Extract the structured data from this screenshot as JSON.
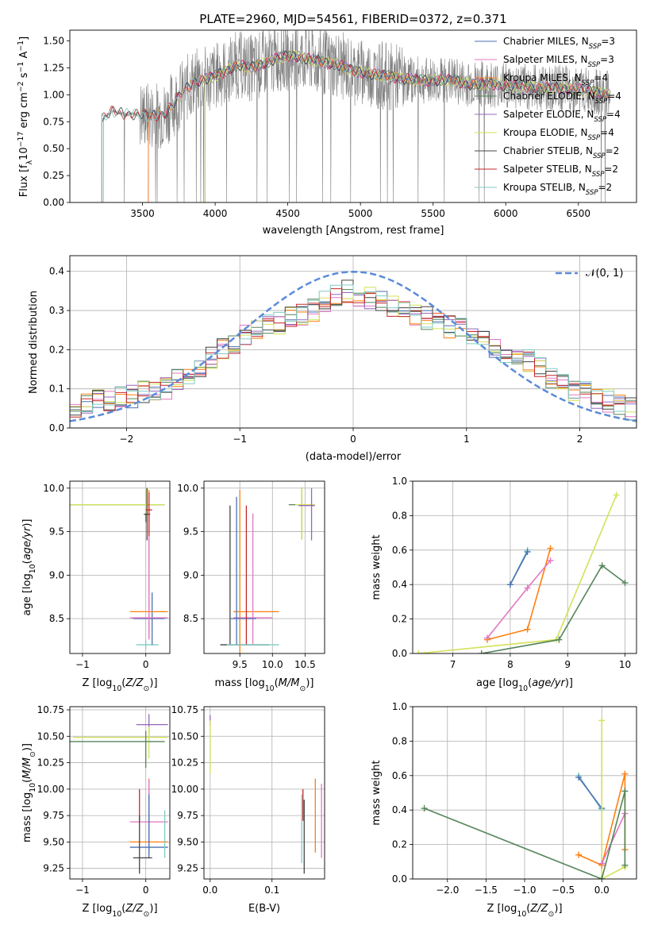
{
  "title": "PLATE=2960, MJD=54561, FIBERID=0372, z=0.371",
  "colors": {
    "chabrier_miles": "#4c72b0",
    "salpeter_miles": "#e377c2",
    "kroupa_miles": "#ff7f0e",
    "chabrier_elodie": "#55855a",
    "salpeter_elodie": "#9467bd",
    "kroupa_elodie": "#d4e157",
    "chabrier_stelib": "#444444",
    "salpeter_stelib": "#c62828",
    "kroupa_stelib": "#80cbc4",
    "data": "#808080",
    "gaussian": "#5b8bd9"
  },
  "chart_data": [
    {
      "id": "spectrum",
      "type": "line",
      "xlabel": "wavelength [Angstrom, rest frame]",
      "ylabel": "Flux [f_λ 10^-17 erg cm^-2 s^-1 A^-1]",
      "xlim": [
        3000,
        6900
      ],
      "ylim": [
        0,
        1.6
      ],
      "xticks": [
        "3500",
        "4000",
        "4500",
        "5000",
        "5500",
        "6000",
        "6500"
      ],
      "yticks": [
        "0.00",
        "0.25",
        "0.50",
        "0.75",
        "1.00",
        "1.25",
        "1.50"
      ],
      "legend": {
        "placement": "right",
        "entries": [
          "Chabrier MILES, N_SSP=3",
          "Salpeter MILES, N_SSP=3",
          "Kroupa MILES, N_SSP=4",
          "Chabrier ELODIE, N_SSP=4",
          "Salpeter ELODIE, N_SSP=4",
          "Kroupa ELODIE, N_SSP=4",
          "Chabrier STELIB, N_SSP=2",
          "Salpeter STELIB, N_SSP=2",
          "Kroupa STELIB, N_SSP=2"
        ]
      },
      "model_x": [
        3230,
        3290,
        3350,
        3420,
        3500,
        3560,
        3650,
        3750,
        3850,
        3950,
        4050,
        4150,
        4250,
        4350,
        4450,
        4550,
        4650,
        4750,
        4850,
        4950,
        5050,
        5150,
        5300,
        5450,
        5600,
        5750,
        5900,
        6050,
        6200,
        6350,
        6500,
        6600,
        6720
      ],
      "model_y": [
        0.78,
        0.85,
        0.83,
        0.82,
        0.82,
        0.8,
        0.82,
        0.98,
        1.12,
        1.15,
        1.2,
        1.28,
        1.25,
        1.3,
        1.35,
        1.36,
        1.33,
        1.3,
        1.28,
        1.22,
        1.2,
        1.18,
        1.15,
        1.13,
        1.14,
        1.1,
        1.1,
        1.08,
        1.07,
        1.06,
        1.05,
        1.03,
        1.0
      ],
      "model_start": {
        "chabrier_miles": 3540,
        "salpeter_miles": 3540,
        "kroupa_miles": 3540,
        "chabrier_elodie": 3930,
        "salpeter_elodie": 3930,
        "kroupa_elodie": 3930,
        "chabrier_stelib": 3220,
        "salpeter_stelib": 3220,
        "kroupa_stelib": 3220
      }
    },
    {
      "id": "residuals",
      "type": "line",
      "xlabel": "(data-model)/error",
      "ylabel": "Normed distribution",
      "xlim": [
        -2.5,
        2.5
      ],
      "ylim": [
        0,
        0.44
      ],
      "xticks": [
        "−2",
        "−1",
        "0",
        "1",
        "2"
      ],
      "yticks": [
        "0.0",
        "0.1",
        "0.2",
        "0.3",
        "0.4"
      ],
      "legend": {
        "placement": "top-right",
        "entries": [
          "𝒩(0, 1)"
        ]
      },
      "series": [
        {
          "name": "Normal(0,1)",
          "type": "gaussian",
          "mu": 0,
          "sigma": 1
        },
        {
          "type": "step",
          "x_start": -2.5,
          "bin": 0.1,
          "base": [
            0.05,
            0.06,
            0.07,
            0.07,
            0.08,
            0.08,
            0.09,
            0.1,
            0.1,
            0.12,
            0.14,
            0.16,
            0.18,
            0.2,
            0.22,
            0.24,
            0.25,
            0.26,
            0.27,
            0.28,
            0.29,
            0.3,
            0.32,
            0.34,
            0.35,
            0.34,
            0.33,
            0.32,
            0.31,
            0.3,
            0.29,
            0.28,
            0.27,
            0.26,
            0.25,
            0.24,
            0.22,
            0.2,
            0.19,
            0.18,
            0.17,
            0.15,
            0.13,
            0.11,
            0.1,
            0.09,
            0.08,
            0.07,
            0.06,
            0.05
          ]
        }
      ]
    },
    {
      "id": "age-vs-Z",
      "type": "scatter",
      "xlabel": "Z [log10(Z/Z⊙)]",
      "ylabel": "age  [log10(age/yr)]",
      "xlim": [
        -1.2,
        0.38
      ],
      "ylim": [
        8.1,
        10.08
      ],
      "xticks": [
        "−1",
        "0"
      ],
      "xtickvals": [
        -1,
        0
      ],
      "yticks": [
        "8.5",
        "9.0",
        "9.5",
        "10.0"
      ],
      "ytickvals": [
        8.5,
        9.0,
        9.5,
        10.0
      ],
      "errorbars": [
        {
          "key": "chabrier_elodie",
          "x": 0.0,
          "y": 9.81,
          "xerr": [
            1.2,
            0.3
          ],
          "yerr": [
            0.2,
            0.2
          ]
        },
        {
          "key": "kroupa_elodie",
          "x": 0.0,
          "y": 9.81,
          "xerr": [
            1.2,
            0.3
          ],
          "yerr": [
            0.1,
            0.2
          ]
        },
        {
          "key": "kroupa_stelib",
          "x": 0.0,
          "y": 8.2,
          "xerr": [
            0.15,
            0.2
          ],
          "yerr": [
            0.05,
            0.05
          ]
        },
        {
          "key": "chabrier_miles",
          "x": 0.1,
          "y": 8.5,
          "xerr": [
            0.3,
            0.2
          ],
          "yerr": [
            0.3,
            0.3
          ]
        },
        {
          "key": "kroupa_miles",
          "x": 0.05,
          "y": 8.58,
          "xerr": [
            0.3,
            0.3
          ],
          "yerr": [
            0.3,
            1.4
          ]
        },
        {
          "key": "salpeter_miles",
          "x": 0.05,
          "y": 8.51,
          "xerr": [
            0.3,
            0.3
          ],
          "yerr": [
            0.25,
            1.2
          ]
        },
        {
          "key": "chabrier_stelib",
          "x": 0.02,
          "y": 9.7,
          "xerr": [
            0.05,
            0.05
          ],
          "yerr": [
            0.3,
            0.3
          ]
        },
        {
          "key": "salpeter_stelib",
          "x": 0.05,
          "y": 9.75,
          "xerr": [
            0.05,
            0.05
          ],
          "yerr": [
            0.3,
            0.2
          ]
        }
      ]
    },
    {
      "id": "age-vs-mass",
      "type": "scatter",
      "xlabel": "mass [log10(M/M⊙)]",
      "ylabel": "",
      "xlim": [
        8.95,
        10.8
      ],
      "ylim": [
        8.1,
        10.08
      ],
      "xticks": [
        "9.5",
        "10.0",
        "10.5"
      ],
      "xtickvals": [
        9.5,
        10.0,
        10.5
      ],
      "yticks": [
        "8.5",
        "9.0",
        "9.5",
        "10.0"
      ],
      "ytickvals": [
        8.5,
        9.0,
        9.5,
        10.0
      ],
      "errorbars": [
        {
          "key": "chabrier_elodie",
          "x": 10.45,
          "y": 9.81,
          "xerr": [
            0.2,
            0.2
          ],
          "yerr": [
            0.4,
            0.2
          ]
        },
        {
          "key": "kroupa_elodie",
          "x": 10.45,
          "y": 9.81,
          "xerr": [
            0.1,
            0.2
          ],
          "yerr": [
            0.4,
            0.2
          ]
        },
        {
          "key": "salpeter_elodie",
          "x": 10.6,
          "y": 9.8,
          "xerr": [
            0.2,
            0.05
          ],
          "yerr": [
            0.4,
            0.2
          ]
        },
        {
          "key": "chabrier_stelib",
          "x": 9.35,
          "y": 8.2,
          "xerr": [
            0.15,
            0.6
          ],
          "yerr": [
            0,
            1.6
          ]
        },
        {
          "key": "kroupa_miles",
          "x": 9.5,
          "y": 8.58,
          "xerr": [
            0.1,
            0.6
          ],
          "yerr": [
            0.5,
            1.4
          ]
        },
        {
          "key": "salpeter_miles",
          "x": 9.7,
          "y": 8.51,
          "xerr": [
            0.3,
            0.3
          ],
          "yerr": [
            0.3,
            1.2
          ]
        },
        {
          "key": "chabrier_miles",
          "x": 9.45,
          "y": 8.5,
          "xerr": [
            0.1,
            0.3
          ],
          "yerr": [
            0.3,
            1.4
          ]
        },
        {
          "key": "salpeter_stelib",
          "x": 9.6,
          "y": 9.0,
          "xerr": [
            0,
            0
          ],
          "yerr": [
            0.8,
            0.8
          ]
        },
        {
          "key": "kroupa_stelib",
          "x": 9.5,
          "y": 8.2,
          "xerr": [
            0.2,
            0.6
          ],
          "yerr": [
            0,
            0
          ]
        }
      ]
    },
    {
      "id": "mass-weight-vs-age",
      "type": "line",
      "xlabel": "age  [log10(age/yr)]",
      "ylabel": "mass weight",
      "xlim": [
        6.3,
        10.2
      ],
      "ylim": [
        0,
        1.0
      ],
      "xticks": [
        "7",
        "8",
        "9",
        "10"
      ],
      "xtickvals": [
        7,
        8,
        9,
        10
      ],
      "yticks": [
        "0.0",
        "0.2",
        "0.4",
        "0.6",
        "0.8",
        "1.0"
      ],
      "ytickvals": [
        0,
        0.2,
        0.4,
        0.6,
        0.8,
        1.0
      ],
      "series": [
        {
          "key": "kroupa_stelib",
          "x": [
            8.0,
            8.3
          ],
          "y": [
            0.4,
            0.6
          ]
        },
        {
          "key": "chabrier_miles",
          "x": [
            8.0,
            8.3
          ],
          "y": [
            0.4,
            0.59
          ]
        },
        {
          "key": "kroupa_miles",
          "x": [
            7.6,
            8.3,
            8.7
          ],
          "y": [
            0.08,
            0.14,
            0.61
          ]
        },
        {
          "key": "salpeter_miles",
          "x": [
            7.6,
            8.3,
            8.7
          ],
          "y": [
            0.09,
            0.38,
            0.54
          ]
        },
        {
          "key": "kroupa_elodie",
          "x": [
            6.4,
            8.8,
            9.85
          ],
          "y": [
            0.0,
            0.08,
            0.92
          ]
        },
        {
          "key": "chabrier_elodie",
          "x": [
            7.5,
            8.85,
            9.6,
            10.0
          ],
          "y": [
            0.0,
            0.08,
            0.51,
            0.41
          ]
        }
      ]
    },
    {
      "id": "mass-vs-Z",
      "type": "scatter",
      "xlabel": "Z [log10(Z/Z⊙)]",
      "ylabel": "mass [log10(M/M⊙)]",
      "xlim": [
        -1.2,
        0.38
      ],
      "ylim": [
        9.15,
        10.78
      ],
      "xticks": [
        "−1",
        "0"
      ],
      "xtickvals": [
        -1,
        0
      ],
      "yticks": [
        "9.25",
        "9.50",
        "9.75",
        "10.00",
        "10.25",
        "10.50",
        "10.75"
      ],
      "ytickvals": [
        9.25,
        9.5,
        9.75,
        10.0,
        10.25,
        10.5,
        10.75
      ],
      "errorbars": [
        {
          "key": "salpeter_elodie",
          "x": 0.05,
          "y": 10.61,
          "xerr": [
            0.2,
            0.3
          ],
          "yerr": [
            0.1,
            0.1
          ]
        },
        {
          "key": "kroupa_elodie",
          "x": 0.05,
          "y": 10.49,
          "xerr": [
            1.2,
            0.3
          ],
          "yerr": [
            0.2,
            0.1
          ]
        },
        {
          "key": "chabrier_elodie",
          "x": 0.0,
          "y": 10.45,
          "xerr": [
            1.2,
            0.3
          ],
          "yerr": [
            0.25,
            0.1
          ]
        },
        {
          "key": "salpeter_stelib",
          "x": -0.1,
          "y": 9.85,
          "xerr": [
            0,
            0
          ],
          "yerr": [
            0.15,
            0.15
          ]
        },
        {
          "key": "kroupa_miles",
          "x": 0.05,
          "y": 9.5,
          "xerr": [
            0.3,
            0.3
          ],
          "yerr": [
            0.1,
            0.6
          ]
        },
        {
          "key": "salpeter_miles",
          "x": 0.05,
          "y": 9.69,
          "xerr": [
            0.3,
            0.3
          ],
          "yerr": [
            0.3,
            0.4
          ]
        },
        {
          "key": "chabrier_miles",
          "x": 0.05,
          "y": 9.45,
          "xerr": [
            0.3,
            0.3
          ],
          "yerr": [
            0.1,
            0.5
          ]
        },
        {
          "key": "chabrier_stelib",
          "x": -0.1,
          "y": 9.35,
          "xerr": [
            0.1,
            0.2
          ],
          "yerr": [
            0.15,
            0.4
          ]
        },
        {
          "key": "kroupa_stelib",
          "x": 0.3,
          "y": 9.5,
          "xerr": [
            0,
            0
          ],
          "yerr": [
            0.15,
            0.3
          ]
        }
      ]
    },
    {
      "id": "mass-vs-ebv",
      "type": "scatter",
      "xlabel": "E(B-V)",
      "ylabel": "",
      "xlim": [
        -0.01,
        0.185
      ],
      "ylim": [
        9.15,
        10.78
      ],
      "xticks": [
        "0.0",
        "0.1"
      ],
      "xtickvals": [
        0.0,
        0.1
      ],
      "yticks": [
        "9.25",
        "9.50",
        "9.75",
        "10.00",
        "10.25",
        "10.50",
        "10.75"
      ],
      "ytickvals": [
        9.25,
        9.5,
        9.75,
        10.0,
        10.25,
        10.5,
        10.75
      ],
      "errorbars": [
        {
          "key": "salpeter_elodie",
          "x": 0.0,
          "y": 10.65,
          "xerr": [
            0,
            0
          ],
          "yerr": [
            0.05,
            0.05
          ]
        },
        {
          "key": "kroupa_elodie",
          "x": 0.0,
          "y": 10.45,
          "xerr": [
            0,
            0
          ],
          "yerr": [
            0.3,
            0.2
          ]
        },
        {
          "key": "salpeter_stelib",
          "x": 0.15,
          "y": 9.85,
          "xerr": [
            0,
            0
          ],
          "yerr": [
            0.15,
            0.15
          ]
        },
        {
          "key": "kroupa_miles",
          "x": 0.17,
          "y": 9.75,
          "xerr": [
            0,
            0
          ],
          "yerr": [
            0.35,
            0.35
          ]
        },
        {
          "key": "salpeter_miles",
          "x": 0.18,
          "y": 9.7,
          "xerr": [
            0,
            0
          ],
          "yerr": [
            0.35,
            0.35
          ]
        },
        {
          "key": "chabrier_stelib",
          "x": 0.152,
          "y": 9.55,
          "xerr": [
            0,
            0
          ],
          "yerr": [
            0.35,
            0.35
          ]
        },
        {
          "key": "kroupa_stelib",
          "x": 0.148,
          "y": 9.6,
          "xerr": [
            0,
            0
          ],
          "yerr": [
            0.3,
            0.35
          ]
        }
      ]
    },
    {
      "id": "mass-weight-vs-Z",
      "type": "line",
      "xlabel": "Z [log10(Z/Z⊙)]",
      "ylabel": "mass weight",
      "xlim": [
        -2.45,
        0.45
      ],
      "ylim": [
        0,
        1.0
      ],
      "xticks": [
        "−2.0",
        "−1.5",
        "−1.0",
        "−0.5",
        "0.0"
      ],
      "xtickvals": [
        -2.0,
        -1.5,
        -1.0,
        -0.5,
        0.0
      ],
      "yticks": [
        "0.0",
        "0.2",
        "0.4",
        "0.6",
        "0.8",
        "1.0"
      ],
      "ytickvals": [
        0,
        0.2,
        0.4,
        0.6,
        0.8,
        1.0
      ],
      "series": [
        {
          "key": "kroupa_stelib",
          "x": [
            -0.3,
            0.0
          ],
          "y": [
            0.6,
            0.4
          ]
        },
        {
          "key": "chabrier_miles",
          "x": [
            -0.3,
            0.0
          ],
          "y": [
            0.59,
            0.41
          ]
        },
        {
          "key": "kroupa_elodie",
          "x": [
            0.0,
            0.0,
            0.3
          ],
          "y": [
            0.92,
            0.0,
            0.07
          ]
        },
        {
          "key": "kroupa_miles",
          "x": [
            -0.3,
            0.0,
            0.3,
            0.3
          ],
          "y": [
            0.14,
            0.08,
            0.61,
            0.17
          ]
        },
        {
          "key": "salpeter_miles",
          "x": [
            0.0,
            0.3
          ],
          "y": [
            0.09,
            0.38
          ]
        },
        {
          "key": "chabrier_elodie",
          "x": [
            -2.3,
            0.0,
            0.3,
            0.3
          ],
          "y": [
            0.41,
            0.0,
            0.51,
            0.08
          ]
        }
      ]
    }
  ]
}
